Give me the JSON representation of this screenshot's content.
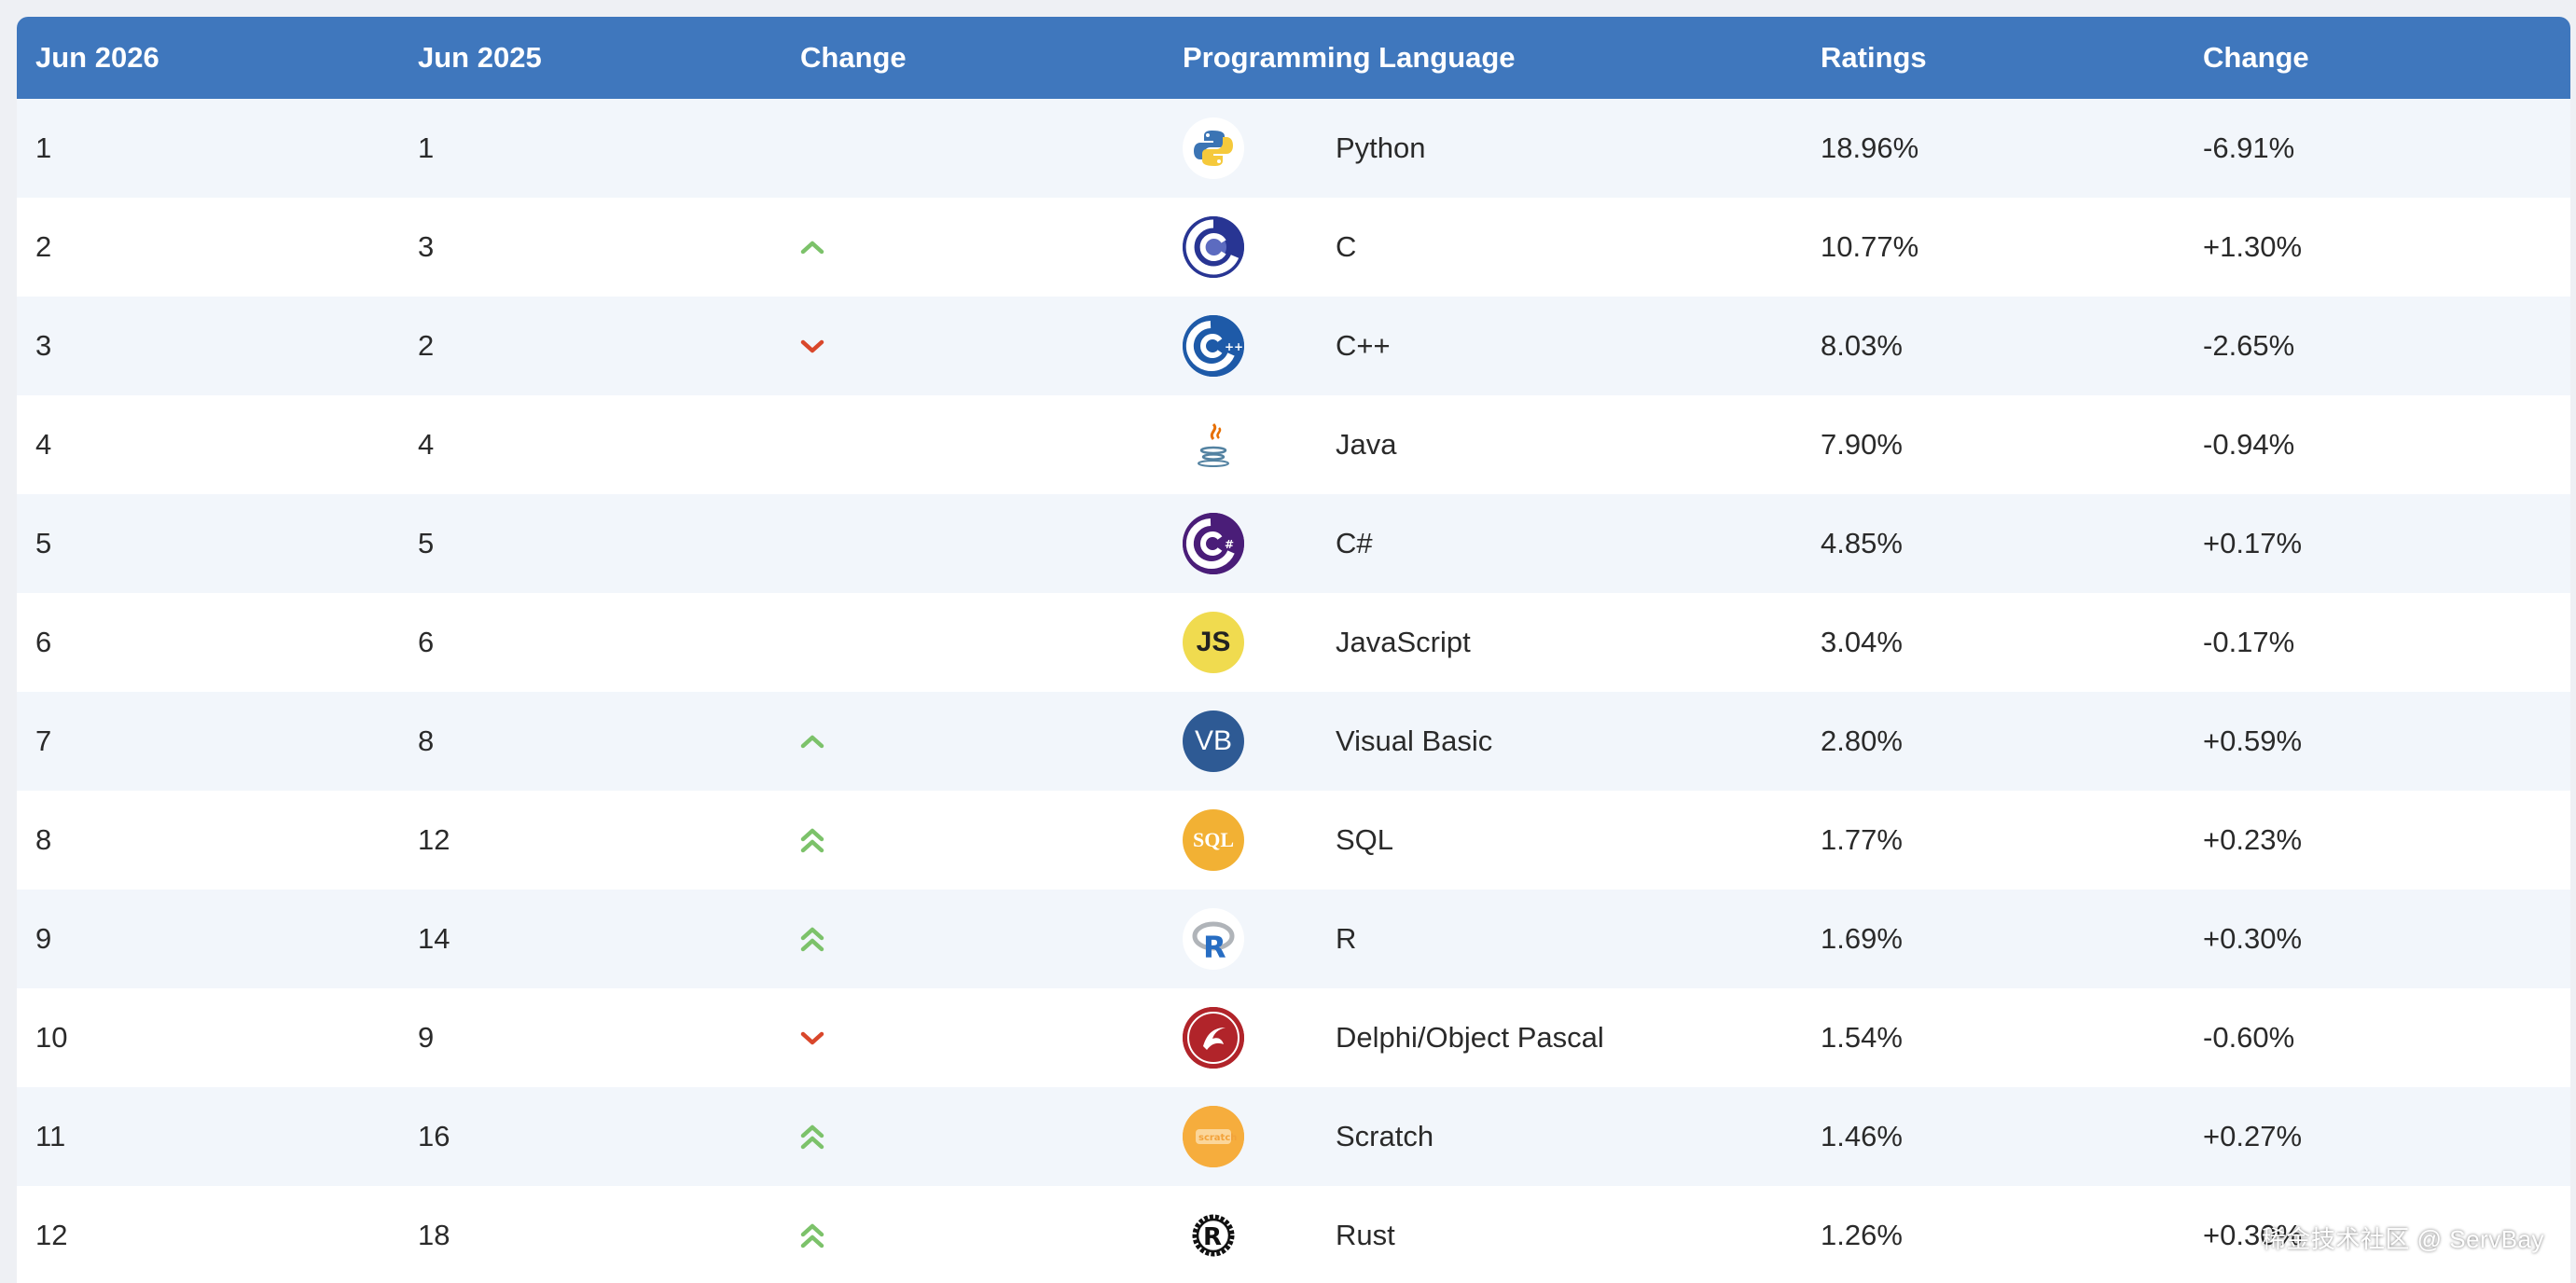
{
  "header": {
    "col1": "Jun 2026",
    "col2": "Jun 2025",
    "col3": "Change",
    "col4": "Programming Language",
    "col5": "Ratings",
    "col6": "Change"
  },
  "rows": [
    {
      "rank_now": "1",
      "rank_prev": "1",
      "trend": "none",
      "logo": "python-logo",
      "language": "Python",
      "rating": "18.96%",
      "change": "-6.91%"
    },
    {
      "rank_now": "2",
      "rank_prev": "3",
      "trend": "up",
      "logo": "c-logo",
      "language": "C",
      "rating": "10.77%",
      "change": "+1.30%"
    },
    {
      "rank_now": "3",
      "rank_prev": "2",
      "trend": "down",
      "logo": "cpp-logo",
      "language": "C++",
      "rating": "8.03%",
      "change": "-2.65%"
    },
    {
      "rank_now": "4",
      "rank_prev": "4",
      "trend": "none",
      "logo": "java-logo",
      "language": "Java",
      "rating": "7.90%",
      "change": "-0.94%"
    },
    {
      "rank_now": "5",
      "rank_prev": "5",
      "trend": "none",
      "logo": "csharp-logo",
      "language": "C#",
      "rating": "4.85%",
      "change": "+0.17%"
    },
    {
      "rank_now": "6",
      "rank_prev": "6",
      "trend": "none",
      "logo": "javascript-logo",
      "language": "JavaScript",
      "rating": "3.04%",
      "change": "-0.17%"
    },
    {
      "rank_now": "7",
      "rank_prev": "8",
      "trend": "up",
      "logo": "visual-basic-logo",
      "language": "Visual Basic",
      "rating": "2.80%",
      "change": "+0.59%"
    },
    {
      "rank_now": "8",
      "rank_prev": "12",
      "trend": "double-up",
      "logo": "sql-logo",
      "language": "SQL",
      "rating": "1.77%",
      "change": "+0.23%"
    },
    {
      "rank_now": "9",
      "rank_prev": "14",
      "trend": "double-up",
      "logo": "r-logo",
      "language": "R",
      "rating": "1.69%",
      "change": "+0.30%"
    },
    {
      "rank_now": "10",
      "rank_prev": "9",
      "trend": "down",
      "logo": "delphi-logo",
      "language": "Delphi/Object Pascal",
      "rating": "1.54%",
      "change": "-0.60%"
    },
    {
      "rank_now": "11",
      "rank_prev": "16",
      "trend": "double-up",
      "logo": "scratch-logo",
      "language": "Scratch",
      "rating": "1.46%",
      "change": "+0.27%"
    },
    {
      "rank_now": "12",
      "rank_prev": "18",
      "trend": "double-up",
      "logo": "rust-logo",
      "language": "Rust",
      "rating": "1.26%",
      "change": "+0.30%"
    }
  ],
  "logo_text": {
    "javascript": "JS",
    "visual_basic": "VB",
    "sql": "SQL",
    "r": "R",
    "rust": "R",
    "scratch": "scratch"
  },
  "watermark": "稀金技术社区 @ ServBay",
  "colors": {
    "header_bg": "#3f77bd",
    "row_alt_bg": "#f2f6fb",
    "trend_up": "#7cc26a",
    "trend_down": "#d9472b"
  }
}
